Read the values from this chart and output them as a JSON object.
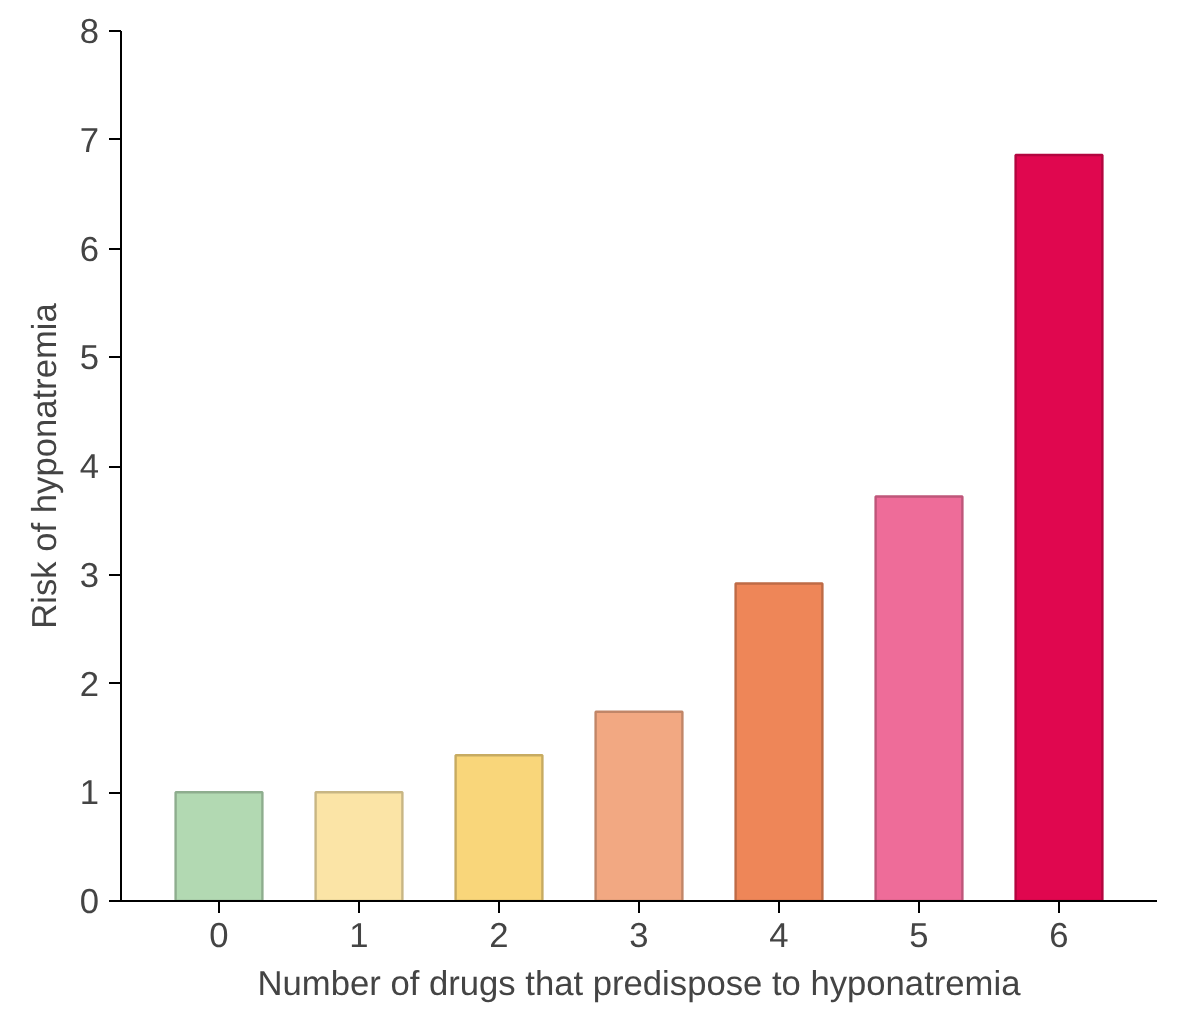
{
  "chart_data": {
    "type": "bar",
    "xlabel": "Number of drugs that predispose to hyponatremia",
    "ylabel": "Risk of hyponatremia",
    "categories": [
      "0",
      "1",
      "2",
      "3",
      "4",
      "5",
      "6"
    ],
    "values": [
      1.0,
      1.0,
      1.34,
      1.74,
      2.92,
      3.72,
      6.86
    ],
    "colors": [
      "#b2d9b2",
      "#fbe4a6",
      "#f9d67a",
      "#f2a882",
      "#ee8658",
      "#ee6c99",
      "#e0074f"
    ],
    "ylim": [
      0,
      8
    ],
    "yticks": [
      0,
      1,
      2,
      3,
      4,
      5,
      6,
      7,
      8
    ],
    "grid": false
  }
}
